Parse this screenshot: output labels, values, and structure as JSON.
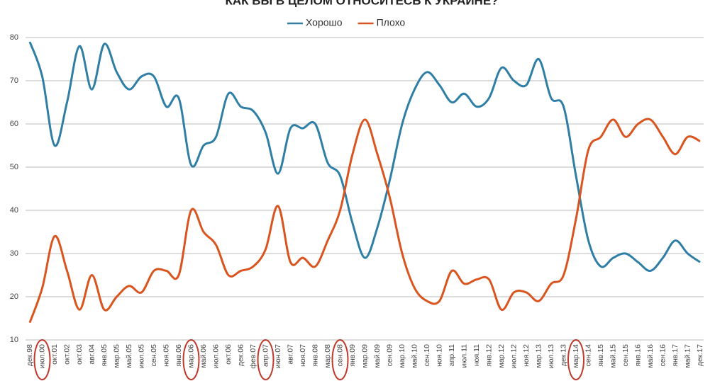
{
  "chart_data": {
    "type": "line",
    "title": "КАК ВЫ В ЦЕЛОМ ОТНОСИТЕСЬ К УКРАИНЕ?",
    "categories": [
      "дек.98",
      "июл.00",
      "окт.01",
      "окт.02",
      "окт.03",
      "авг.04",
      "янв.05",
      "мар.05",
      "май.05",
      "июл.05",
      "сен.05",
      "ноя.05",
      "янв.06",
      "мар.06",
      "май.06",
      "июл.06",
      "окт.06",
      "дек.06",
      "фев.07",
      "апр.07",
      "июн.07",
      "авг.07",
      "ноя.07",
      "янв.08",
      "мар.08",
      "сен.08",
      "янв.09",
      "мар.09",
      "май.09",
      "сен.09",
      "мар.10",
      "май.10",
      "сен.10",
      "ноя.10",
      "апр.11",
      "июл.11",
      "ноя.11",
      "янв.12",
      "мар.12",
      "июл.12",
      "ноя.12",
      "мар.13",
      "июл.13",
      "дек.13",
      "мар.14",
      "сен.14",
      "янв.15",
      "май.15",
      "сен.15",
      "янв.16",
      "май.16",
      "сен.16",
      "янв.17",
      "май.17",
      "дек.17"
    ],
    "series": [
      {
        "name": "Хорошо",
        "color": "#2e7ea6",
        "values": [
          79,
          71,
          55,
          65,
          78,
          68,
          78.5,
          72,
          68,
          71,
          71,
          64,
          66,
          50.5,
          55,
          57,
          67,
          64,
          63,
          58,
          48.5,
          59,
          59,
          60,
          51,
          48,
          37,
          29,
          36,
          47,
          60,
          68,
          72,
          69,
          65,
          67,
          64,
          66,
          73,
          70,
          69,
          75,
          66,
          64,
          48,
          33,
          27,
          29,
          30,
          28,
          26,
          29,
          33,
          30,
          28
        ]
      },
      {
        "name": "Плохо",
        "color": "#d9541e",
        "values": [
          14,
          22,
          34,
          26,
          17,
          25,
          17,
          20,
          22.5,
          21,
          26,
          26,
          25,
          40,
          35,
          32,
          25,
          26,
          27,
          31,
          41,
          28,
          29,
          27,
          33,
          40,
          53,
          61,
          53,
          43,
          30,
          22,
          19,
          19,
          26,
          23,
          24,
          24,
          17,
          21,
          21,
          19,
          23,
          25,
          38,
          54,
          57,
          61,
          57,
          60,
          61,
          57,
          53,
          57,
          56
        ]
      }
    ],
    "ylim": [
      10,
      80
    ],
    "yticks": [
      10,
      20,
      30,
      40,
      50,
      60,
      70,
      80
    ],
    "grid": true,
    "legend": "top"
  }
}
